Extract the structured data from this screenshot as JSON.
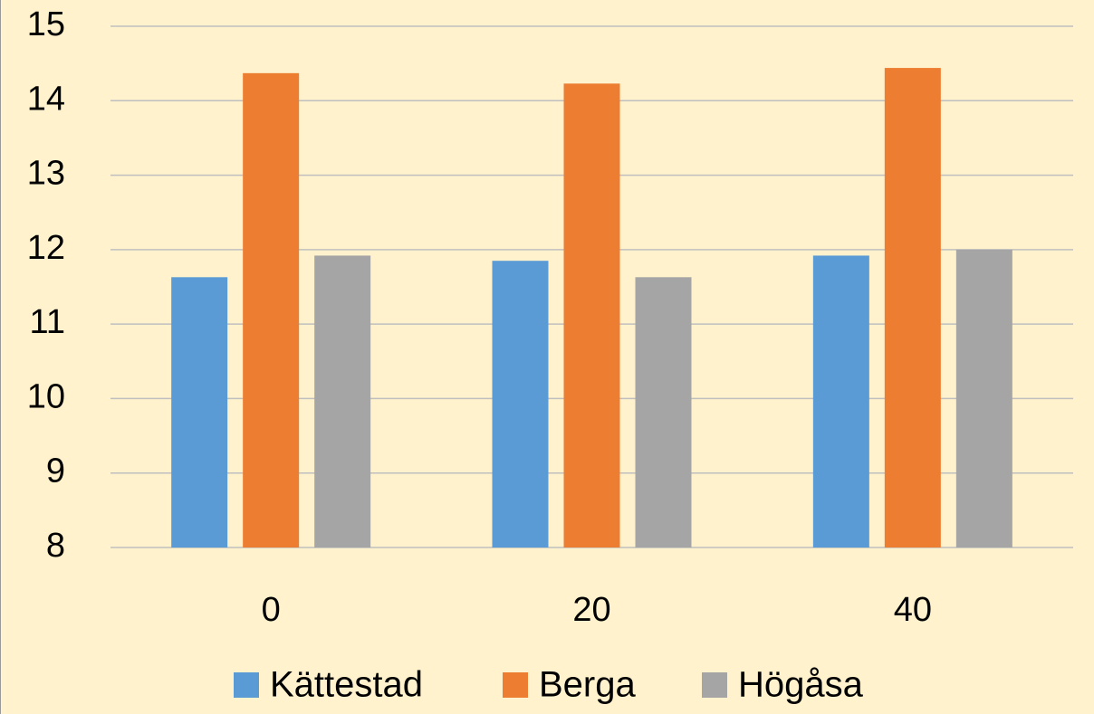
{
  "chart_data": {
    "type": "bar",
    "categories": [
      "0",
      "20",
      "40"
    ],
    "series": [
      {
        "name": "Kättestad",
        "color": "#5b9bd5",
        "values": [
          11.63,
          11.85,
          11.92
        ]
      },
      {
        "name": "Berga",
        "color": "#ed7d31",
        "values": [
          14.37,
          14.23,
          14.44
        ]
      },
      {
        "name": "Högåsa",
        "color": "#a5a5a5",
        "values": [
          11.92,
          11.63,
          12.0
        ]
      }
    ],
    "ylim": [
      8,
      15
    ],
    "yticks": [
      8,
      9,
      10,
      11,
      12,
      13,
      14,
      15
    ],
    "grid": true,
    "legend": "bottom"
  }
}
